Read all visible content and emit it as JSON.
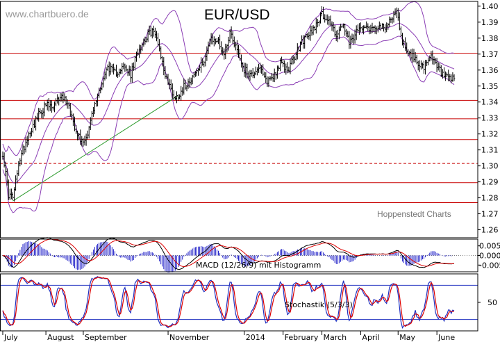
{
  "chart_data": [
    {
      "type": "candlestick",
      "title": "EUR/USD",
      "watermark": "www.chartbuero.de",
      "source": "Hoppenstedt Charts",
      "ylim": [
        1.255,
        1.403
      ],
      "y_ticks": [
        "1.40",
        "1.39",
        "1.38",
        "1.37",
        "1.36",
        "1.35",
        "1.34",
        "1.33",
        "1.32",
        "1.31",
        "1.30",
        "1.29",
        "1.28",
        "1.27",
        "1.26"
      ],
      "y_tick_values": [
        1.4,
        1.39,
        1.38,
        1.37,
        1.36,
        1.35,
        1.34,
        1.33,
        1.32,
        1.31,
        1.3,
        1.29,
        1.28,
        1.27,
        1.26
      ],
      "x_months": [
        "July",
        "August",
        "September",
        "November",
        "2014",
        "February",
        "March",
        "April",
        "May",
        "June"
      ],
      "x_month_index": [
        0,
        30,
        56,
        115,
        168,
        195,
        222,
        249,
        275,
        302
      ],
      "horizontal_lines": [
        {
          "value": 1.3705,
          "style": "solid"
        },
        {
          "value": 1.341,
          "style": "solid"
        },
        {
          "value": 1.3295,
          "style": "solid"
        },
        {
          "value": 1.3165,
          "style": "solid"
        },
        {
          "value": 1.3015,
          "style": "dashed"
        },
        {
          "value": 1.2895,
          "style": "solid"
        },
        {
          "value": 1.277,
          "style": "solid"
        }
      ],
      "trendline": {
        "from": [
          7,
          1.278
        ],
        "to": [
          122,
          1.344
        ]
      },
      "bollinger_period": 20,
      "bollinger_width": 2,
      "close_anchors": [
        [
          0,
          1.308
        ],
        [
          4,
          1.282
        ],
        [
          7,
          1.28
        ],
        [
          12,
          1.305
        ],
        [
          18,
          1.32
        ],
        [
          25,
          1.332
        ],
        [
          30,
          1.338
        ],
        [
          35,
          1.336
        ],
        [
          40,
          1.344
        ],
        [
          45,
          1.34
        ],
        [
          50,
          1.325
        ],
        [
          55,
          1.315
        ],
        [
          58,
          1.318
        ],
        [
          63,
          1.335
        ],
        [
          68,
          1.35
        ],
        [
          73,
          1.362
        ],
        [
          78,
          1.358
        ],
        [
          84,
          1.362
        ],
        [
          89,
          1.357
        ],
        [
          94,
          1.372
        ],
        [
          99,
          1.38
        ],
        [
          104,
          1.385
        ],
        [
          108,
          1.378
        ],
        [
          112,
          1.36
        ],
        [
          116,
          1.35
        ],
        [
          120,
          1.342
        ],
        [
          124,
          1.347
        ],
        [
          129,
          1.353
        ],
        [
          134,
          1.358
        ],
        [
          139,
          1.364
        ],
        [
          144,
          1.378
        ],
        [
          149,
          1.379
        ],
        [
          154,
          1.37
        ],
        [
          158,
          1.384
        ],
        [
          163,
          1.373
        ],
        [
          168,
          1.36
        ],
        [
          173,
          1.357
        ],
        [
          178,
          1.362
        ],
        [
          183,
          1.353
        ],
        [
          188,
          1.356
        ],
        [
          193,
          1.364
        ],
        [
          198,
          1.36
        ],
        [
          203,
          1.368
        ],
        [
          208,
          1.378
        ],
        [
          213,
          1.382
        ],
        [
          218,
          1.389
        ],
        [
          222,
          1.395
        ],
        [
          227,
          1.391
        ],
        [
          232,
          1.382
        ],
        [
          237,
          1.388
        ],
        [
          241,
          1.376
        ],
        [
          246,
          1.383
        ],
        [
          251,
          1.389
        ],
        [
          256,
          1.386
        ],
        [
          261,
          1.388
        ],
        [
          266,
          1.385
        ],
        [
          270,
          1.393
        ],
        [
          274,
          1.396
        ],
        [
          278,
          1.378
        ],
        [
          283,
          1.37
        ],
        [
          288,
          1.366
        ],
        [
          293,
          1.361
        ],
        [
          298,
          1.368
        ],
        [
          302,
          1.362
        ],
        [
          306,
          1.357
        ],
        [
          310,
          1.354
        ]
      ]
    },
    {
      "type": "line",
      "label": "MACD (12/26/9) mit Histogramm",
      "ylim": [
        -0.0085,
        0.0085
      ],
      "y_ticks": [
        "0.005",
        "0.000",
        "-0.005"
      ],
      "y_tick_values": [
        0.005,
        0.0,
        -0.005
      ],
      "series": [
        {
          "color": "#000000"
        },
        {
          "color": "#dd0000"
        }
      ],
      "histogram_color": "#2020c8"
    },
    {
      "type": "line",
      "label": "Stochastik (5/3/3)",
      "ylim": [
        0,
        100
      ],
      "y_ticks": [
        "50"
      ],
      "y_tick_values": [
        50
      ],
      "reference_lines": [
        80,
        20
      ],
      "reference_color": "#2030c0",
      "series": [
        {
          "color": "#2030c0"
        },
        {
          "color": "#dd0000"
        }
      ]
    }
  ],
  "colors": {
    "candle": "#000000",
    "band": "#8a3cb4",
    "hline": "#c80000",
    "trendline": "#2a9a2a",
    "frame": "#000000"
  }
}
